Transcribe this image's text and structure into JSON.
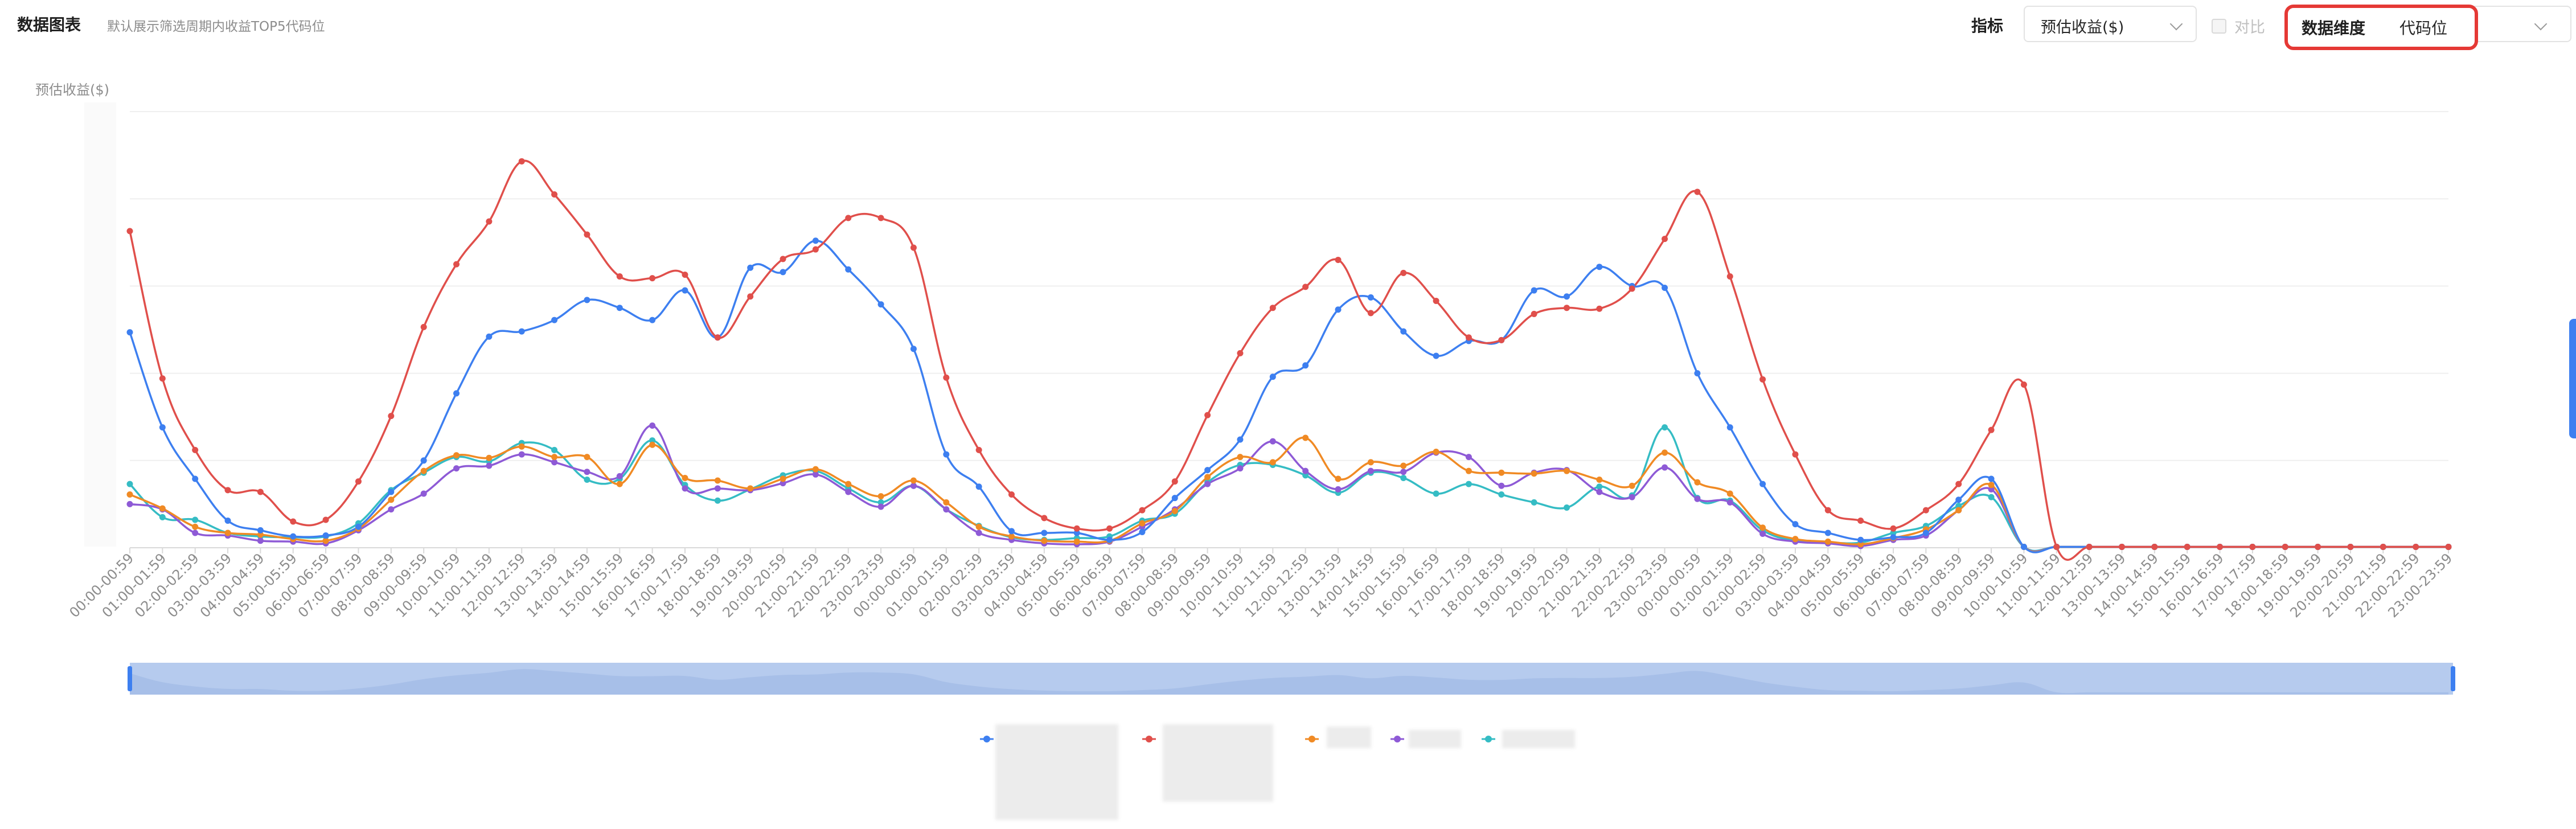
{
  "header": {
    "title": "数据图表",
    "subtitle": "默认展示筛选周期内收益TOP5代码位"
  },
  "toolbar": {
    "metric_label": "指标",
    "metric_value": "预估收益($)",
    "compare_label": "对比",
    "dimension_label": "数据维度",
    "dimension_value": "代码位"
  },
  "icons": {
    "chevron": "chevron-down-icon"
  },
  "colors": {
    "accent": "#3d7ff0",
    "highlight_border": "#e53935"
  },
  "chart_data": {
    "type": "line",
    "ylabel": "预估收益($)",
    "grid": true,
    "categories": [
      "00:00-00:59",
      "01:00-01:59",
      "02:00-02:59",
      "03:00-03:59",
      "04:00-04:59",
      "05:00-05:59",
      "06:00-06:59",
      "07:00-07:59",
      "08:00-08:59",
      "09:00-09:59",
      "10:00-10:59",
      "11:00-11:59",
      "12:00-12:59",
      "13:00-13:59",
      "14:00-14:59",
      "15:00-15:59",
      "16:00-16:59",
      "17:00-17:59",
      "18:00-18:59",
      "19:00-19:59",
      "20:00-20:59",
      "21:00-21:59",
      "22:00-22:59",
      "23:00-23:59",
      "00:00-00:59",
      "01:00-01:59",
      "02:00-02:59",
      "03:00-03:59",
      "04:00-04:59",
      "05:00-05:59",
      "06:00-06:59",
      "07:00-07:59",
      "08:00-08:59",
      "09:00-09:59",
      "10:00-10:59",
      "11:00-11:59",
      "12:00-12:59",
      "13:00-13:59",
      "14:00-14:59",
      "15:00-15:59",
      "16:00-16:59",
      "17:00-17:59",
      "18:00-18:59",
      "19:00-19:59",
      "20:00-20:59",
      "21:00-21:59",
      "22:00-22:59",
      "23:00-23:59",
      "00:00-00:59",
      "01:00-01:59",
      "02:00-02:59",
      "03:00-03:59",
      "04:00-04:59",
      "05:00-05:59",
      "06:00-06:59",
      "07:00-07:59",
      "08:00-08:59",
      "09:00-09:59",
      "10:00-10:59",
      "11:00-11:59",
      "12:00-12:59",
      "13:00-13:59",
      "14:00-14:59",
      "15:00-15:59",
      "16:00-16:59",
      "17:00-17:59",
      "18:00-18:59",
      "19:00-19:59",
      "20:00-20:59",
      "21:00-21:59",
      "22:00-22:59",
      "23:00-23:59"
    ],
    "ylim": [
      0,
      5
    ],
    "series": [
      {
        "color": "#3d7ff0",
        "values": [
          2.47,
          1.38,
          0.79,
          0.31,
          0.2,
          0.13,
          0.14,
          0.24,
          0.64,
          1.0,
          1.77,
          2.42,
          2.48,
          2.61,
          2.84,
          2.75,
          2.61,
          2.95,
          2.41,
          3.21,
          3.16,
          3.52,
          3.19,
          2.79,
          2.28,
          1.07,
          0.7,
          0.19,
          0.17,
          0.17,
          0.09,
          0.18,
          0.57,
          0.89,
          1.24,
          1.96,
          2.09,
          2.73,
          2.87,
          2.48,
          2.2,
          2.37,
          2.38,
          2.95,
          2.88,
          3.22,
          3.0,
          2.98,
          2.0,
          1.38,
          0.73,
          0.27,
          0.17,
          0.09,
          0.12,
          0.17,
          0.55,
          0.79,
          0.01,
          0.01,
          0.01,
          0.01,
          0.01,
          0.01,
          0.01,
          0.01,
          0.01,
          0.01,
          0.01,
          0.01,
          0.01,
          0.01
        ]
      },
      {
        "color": "#e04f4b",
        "values": [
          3.63,
          1.94,
          1.12,
          0.66,
          0.64,
          0.3,
          0.32,
          0.76,
          1.51,
          2.53,
          3.25,
          3.74,
          4.43,
          4.05,
          3.59,
          3.11,
          3.09,
          3.13,
          2.41,
          2.88,
          3.31,
          3.42,
          3.78,
          3.78,
          3.44,
          1.95,
          1.12,
          0.61,
          0.34,
          0.22,
          0.22,
          0.43,
          0.76,
          1.52,
          2.23,
          2.75,
          2.99,
          3.3,
          2.69,
          3.15,
          2.83,
          2.41,
          2.38,
          2.68,
          2.75,
          2.74,
          2.97,
          3.54,
          4.08,
          3.11,
          1.93,
          1.07,
          0.43,
          0.31,
          0.22,
          0.43,
          0.73,
          1.35,
          1.87,
          0.01,
          0.01,
          0.01,
          0.01,
          0.01,
          0.01,
          0.01,
          0.01,
          0.01,
          0.01,
          0.01,
          0.01,
          0.01
        ]
      },
      {
        "color": "#f08a24",
        "values": [
          0.61,
          0.45,
          0.24,
          0.17,
          0.15,
          0.1,
          0.08,
          0.22,
          0.55,
          0.88,
          1.06,
          1.03,
          1.16,
          1.04,
          1.04,
          0.73,
          1.18,
          0.8,
          0.77,
          0.68,
          0.79,
          0.9,
          0.73,
          0.59,
          0.77,
          0.52,
          0.24,
          0.13,
          0.08,
          0.07,
          0.08,
          0.28,
          0.42,
          0.81,
          1.04,
          0.98,
          1.26,
          0.79,
          0.98,
          0.94,
          1.1,
          0.88,
          0.86,
          0.85,
          0.88,
          0.78,
          0.71,
          1.09,
          0.75,
          0.62,
          0.23,
          0.1,
          0.07,
          0.04,
          0.11,
          0.21,
          0.43,
          0.72,
          0.01,
          0.01,
          0.01,
          0.01,
          0.01,
          0.01,
          0.01,
          0.01,
          0.01,
          0.01,
          0.01,
          0.01,
          0.01,
          0.01
        ]
      },
      {
        "color": "#8e5ad6",
        "values": [
          0.5,
          0.44,
          0.17,
          0.14,
          0.08,
          0.07,
          0.05,
          0.2,
          0.44,
          0.62,
          0.91,
          0.94,
          1.07,
          0.98,
          0.87,
          0.82,
          1.4,
          0.68,
          0.68,
          0.66,
          0.74,
          0.84,
          0.64,
          0.47,
          0.71,
          0.44,
          0.17,
          0.09,
          0.05,
          0.04,
          0.07,
          0.24,
          0.44,
          0.73,
          0.91,
          1.22,
          0.88,
          0.67,
          0.88,
          0.87,
          1.09,
          1.04,
          0.71,
          0.86,
          0.89,
          0.64,
          0.58,
          0.92,
          0.56,
          0.52,
          0.16,
          0.07,
          0.05,
          0.02,
          0.09,
          0.14,
          0.43,
          0.67,
          0.01,
          0.01,
          0.01,
          0.01,
          0.01,
          0.01,
          0.01,
          0.01,
          0.01,
          0.01,
          0.01,
          0.01,
          0.01,
          0.01
        ]
      },
      {
        "color": "#35bcc4",
        "values": [
          0.73,
          0.35,
          0.32,
          0.17,
          0.13,
          0.12,
          0.13,
          0.28,
          0.66,
          0.86,
          1.04,
          0.99,
          1.2,
          1.12,
          0.78,
          0.79,
          1.23,
          0.72,
          0.54,
          0.67,
          0.83,
          0.88,
          0.68,
          0.52,
          0.71,
          0.44,
          0.25,
          0.12,
          0.09,
          0.11,
          0.13,
          0.31,
          0.39,
          0.75,
          0.95,
          0.95,
          0.83,
          0.63,
          0.86,
          0.8,
          0.62,
          0.73,
          0.61,
          0.52,
          0.46,
          0.7,
          0.6,
          1.38,
          0.57,
          0.54,
          0.2,
          0.08,
          0.06,
          0.06,
          0.17,
          0.25,
          0.48,
          0.58,
          0.01,
          0.01,
          0.01,
          0.01,
          0.01,
          0.01,
          0.01,
          0.01,
          0.01,
          0.01,
          0.01,
          0.01,
          0.01,
          0.01
        ]
      }
    ]
  }
}
